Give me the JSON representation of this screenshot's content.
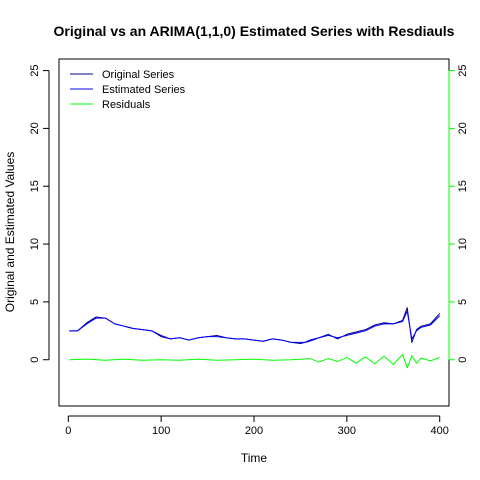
{
  "chart_data": {
    "type": "line",
    "title": "Original vs an ARIMA(1,1,0) Estimated Series with Resdiauls",
    "xlabel": "Time",
    "ylabel": "Original and Estimated Values",
    "xlim": [
      -10,
      410
    ],
    "ylim": [
      -4,
      26
    ],
    "x_ticks": [
      0,
      100,
      200,
      300,
      400
    ],
    "y_ticks_left": [
      0,
      5,
      10,
      15,
      20,
      25
    ],
    "y_ticks_right": [
      0,
      5,
      10,
      15,
      20,
      25
    ],
    "grid": false,
    "legend_position": "top-left",
    "legend": [
      {
        "label": "Original Series",
        "color": "#00008b"
      },
      {
        "label": "Estimated Series",
        "color": "#0000ff"
      },
      {
        "label": "Residuals",
        "color": "#00ff00"
      }
    ],
    "series": [
      {
        "name": "Original Series",
        "color": "#00008b",
        "x": [
          1,
          10,
          20,
          30,
          40,
          50,
          60,
          70,
          80,
          90,
          100,
          110,
          120,
          130,
          140,
          150,
          160,
          170,
          180,
          190,
          200,
          210,
          220,
          230,
          240,
          250,
          255,
          260,
          270,
          280,
          290,
          300,
          310,
          320,
          330,
          340,
          350,
          360,
          365,
          370,
          375,
          380,
          390,
          400
        ],
        "y": [
          2.5,
          2.5,
          3.2,
          3.7,
          3.6,
          3.1,
          2.9,
          2.7,
          2.6,
          2.5,
          2.0,
          1.8,
          1.9,
          1.7,
          1.9,
          2.0,
          2.1,
          1.9,
          1.8,
          1.8,
          1.7,
          1.6,
          1.8,
          1.7,
          1.5,
          1.4,
          1.5,
          1.7,
          1.9,
          2.2,
          1.8,
          2.2,
          2.4,
          2.6,
          3.0,
          3.2,
          3.1,
          3.4,
          4.5,
          1.5,
          2.6,
          2.9,
          3.1,
          4.0
        ]
      },
      {
        "name": "Estimated Series",
        "color": "#0000ff",
        "x": [
          1,
          10,
          20,
          30,
          40,
          50,
          60,
          70,
          80,
          90,
          100,
          110,
          120,
          130,
          140,
          150,
          160,
          170,
          180,
          190,
          200,
          210,
          220,
          230,
          240,
          250,
          255,
          260,
          270,
          280,
          290,
          300,
          310,
          320,
          330,
          340,
          350,
          360,
          365,
          370,
          375,
          380,
          390,
          400
        ],
        "y": [
          2.5,
          2.5,
          3.1,
          3.6,
          3.6,
          3.1,
          2.9,
          2.7,
          2.6,
          2.5,
          2.1,
          1.8,
          1.9,
          1.7,
          1.9,
          2.0,
          2.0,
          1.9,
          1.8,
          1.8,
          1.7,
          1.6,
          1.8,
          1.7,
          1.5,
          1.5,
          1.5,
          1.6,
          1.9,
          2.1,
          1.9,
          2.1,
          2.3,
          2.5,
          2.9,
          3.1,
          3.1,
          3.3,
          4.2,
          1.8,
          2.5,
          2.8,
          3.0,
          3.8
        ]
      },
      {
        "name": "Residuals",
        "color": "#00ff00",
        "x": [
          1,
          20,
          40,
          60,
          80,
          100,
          120,
          140,
          160,
          180,
          200,
          220,
          240,
          260,
          270,
          280,
          290,
          300,
          310,
          320,
          330,
          340,
          350,
          360,
          365,
          370,
          375,
          380,
          390,
          400
        ],
        "y": [
          0.0,
          0.05,
          -0.05,
          0.05,
          -0.05,
          0.0,
          -0.05,
          0.05,
          -0.05,
          0.0,
          0.05,
          -0.05,
          0.0,
          0.1,
          -0.2,
          0.1,
          -0.15,
          0.2,
          -0.3,
          0.25,
          -0.35,
          0.3,
          -0.4,
          0.45,
          -0.7,
          0.35,
          -0.3,
          0.15,
          -0.1,
          0.2
        ]
      }
    ]
  }
}
